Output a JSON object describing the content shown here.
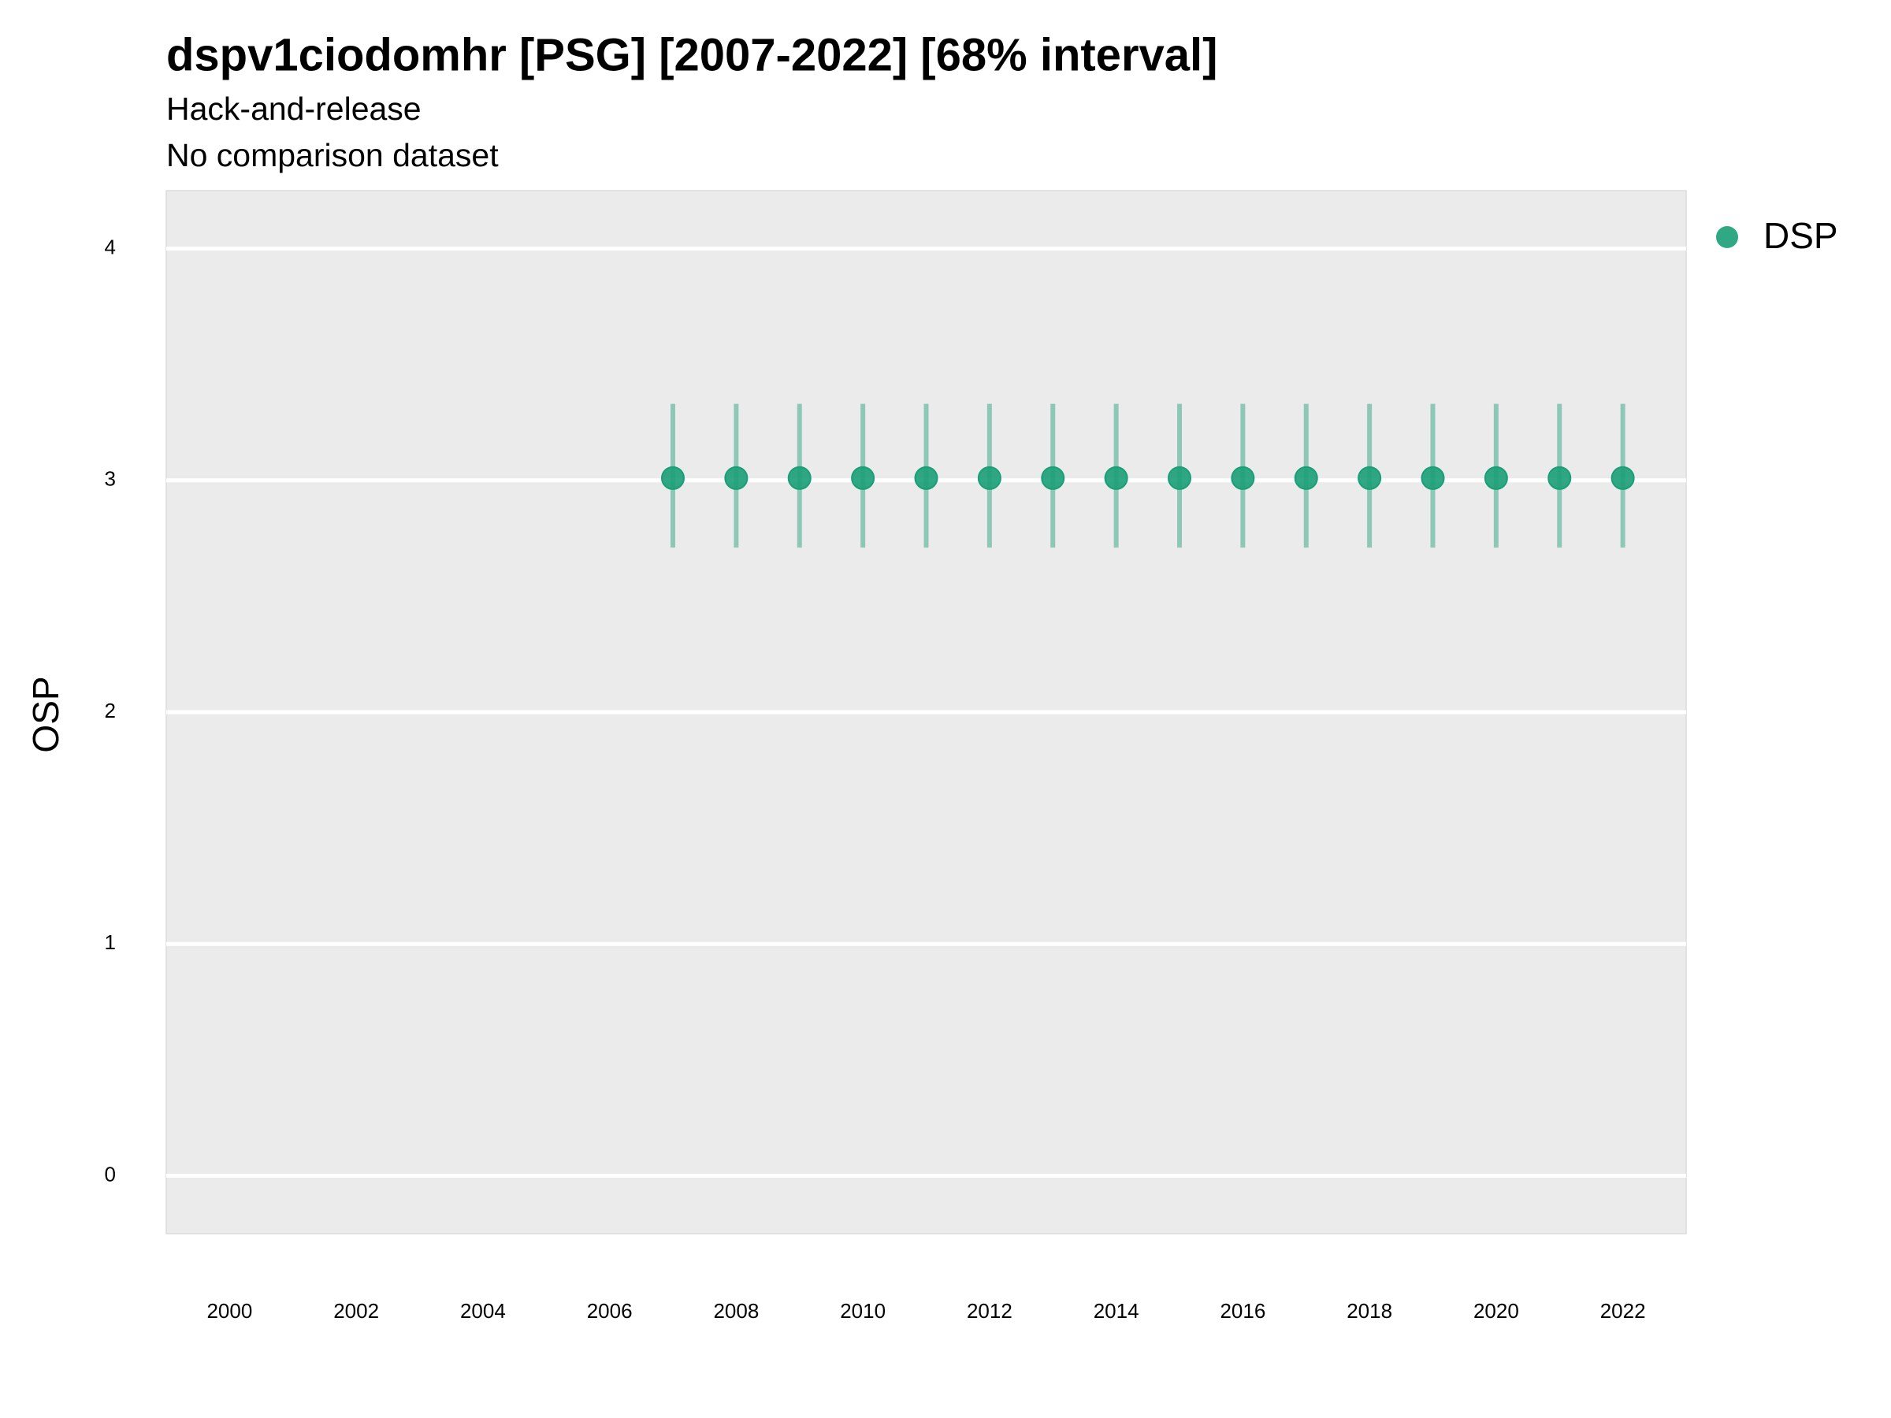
{
  "chart_data": {
    "type": "scatter",
    "title": "dspv1ciodomhr [PSG] [2007-2022] [68% interval]",
    "subtitle": [
      "Hack-and-release",
      "No comparison dataset"
    ],
    "y_label": "OSP",
    "x": [
      2007,
      2008,
      2009,
      2010,
      2011,
      2012,
      2013,
      2014,
      2015,
      2016,
      2017,
      2018,
      2019,
      2020,
      2021,
      2022
    ],
    "series": [
      {
        "name": "DSP",
        "color": "#1b9e77",
        "values": [
          3.01,
          3.01,
          3.01,
          3.01,
          3.01,
          3.01,
          3.01,
          3.01,
          3.01,
          3.01,
          3.01,
          3.01,
          3.01,
          3.01,
          3.01,
          3.01
        ],
        "lower": [
          2.71,
          2.71,
          2.71,
          2.71,
          2.71,
          2.71,
          2.71,
          2.71,
          2.71,
          2.71,
          2.71,
          2.71,
          2.71,
          2.71,
          2.71,
          2.71
        ],
        "upper": [
          3.33,
          3.33,
          3.33,
          3.33,
          3.33,
          3.33,
          3.33,
          3.33,
          3.33,
          3.33,
          3.33,
          3.33,
          3.33,
          3.33,
          3.33,
          3.33
        ]
      }
    ],
    "xlim": [
      1999,
      2023
    ],
    "xticks": [
      2000,
      2002,
      2004,
      2006,
      2008,
      2010,
      2012,
      2014,
      2016,
      2018,
      2020,
      2022
    ],
    "ylim": [
      -0.25,
      4.25
    ],
    "yticks": [
      0,
      1,
      2,
      3,
      4
    ],
    "grid": true,
    "legend_position": "right"
  }
}
